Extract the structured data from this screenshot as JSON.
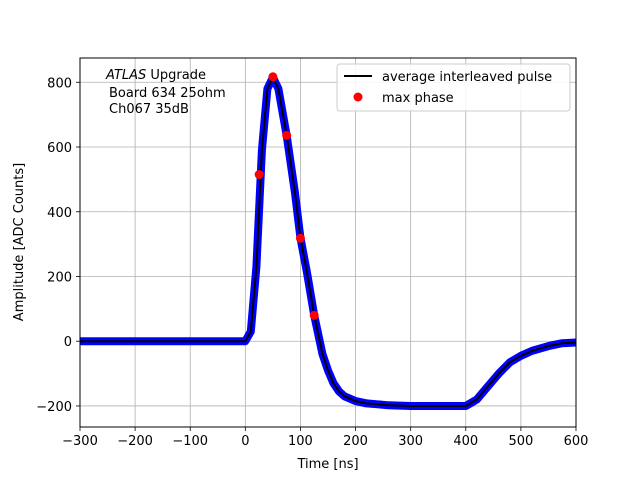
{
  "chart_data": {
    "type": "line",
    "xlabel": "Time [ns]",
    "ylabel": "Amplitude [ADC Counts]",
    "xlim": [
      -300,
      600
    ],
    "ylim": [
      -265,
      875
    ],
    "xticks": [
      -300,
      -200,
      -100,
      0,
      100,
      200,
      300,
      400,
      500,
      600
    ],
    "yticks": [
      -200,
      0,
      200,
      400,
      600,
      800
    ],
    "xtick_labels": [
      "−300",
      "−200",
      "−100",
      "0",
      "100",
      "200",
      "300",
      "400",
      "500",
      "600"
    ],
    "ytick_labels": [
      "−200",
      "0",
      "200",
      "400",
      "600",
      "800"
    ],
    "grid": true,
    "legend_position": "top-right",
    "annotation": {
      "line1_italic": "ATLAS",
      "line1_rest": " Upgrade",
      "line2": "Board 634 25ohm",
      "line3": "Ch067 35dB"
    },
    "series": [
      {
        "name": "average interleaved pulse",
        "style": "line",
        "color": "#000000",
        "scatter_color": "#0000ff",
        "x": [
          -300,
          -100,
          0,
          10,
          20,
          30,
          40,
          50,
          60,
          75,
          90,
          100,
          112,
          125,
          140,
          150,
          160,
          170,
          180,
          200,
          220,
          240,
          260,
          300,
          350,
          400,
          420,
          440,
          460,
          480,
          500,
          520,
          550,
          575,
          600
        ],
        "y": [
          0,
          0,
          0,
          30,
          230,
          590,
          780,
          815,
          780,
          635,
          460,
          320,
          210,
          80,
          -40,
          -90,
          -130,
          -155,
          -170,
          -185,
          -192,
          -195,
          -198,
          -200,
          -200,
          -200,
          -180,
          -140,
          -100,
          -65,
          -45,
          -30,
          -15,
          -6,
          -4
        ]
      },
      {
        "name": "max phase",
        "style": "scatter",
        "color": "#ff0000",
        "x": [
          25,
          50,
          75,
          100,
          125
        ],
        "y": [
          515,
          817,
          636,
          318,
          80
        ]
      }
    ]
  }
}
